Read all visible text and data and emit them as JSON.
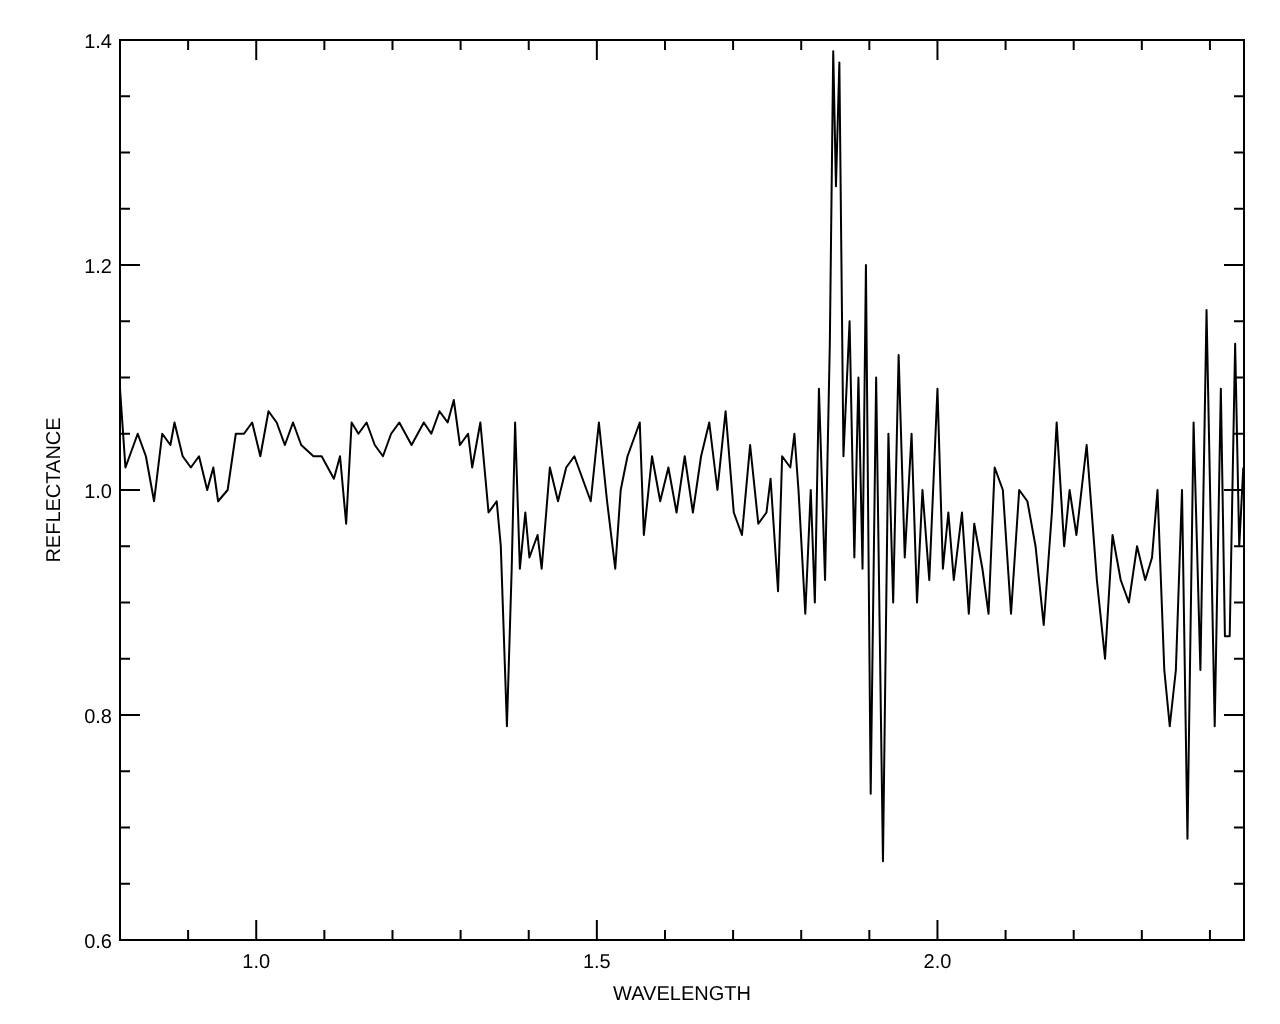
{
  "chart_data": {
    "type": "line",
    "xlabel": "WAVELENGTH",
    "ylabel": "REFLECTANCE",
    "xlim": [
      0.8,
      2.45
    ],
    "ylim": [
      0.6,
      1.4
    ],
    "xticks": [
      {
        "value": 0.9,
        "label": null
      },
      {
        "value": 1.0,
        "label": "1.0"
      },
      {
        "value": 1.1,
        "label": null
      },
      {
        "value": 1.2,
        "label": null
      },
      {
        "value": 1.3,
        "label": null
      },
      {
        "value": 1.4,
        "label": null
      },
      {
        "value": 1.5,
        "label": "1.5"
      },
      {
        "value": 1.6,
        "label": null
      },
      {
        "value": 1.7,
        "label": null
      },
      {
        "value": 1.8,
        "label": null
      },
      {
        "value": 1.9,
        "label": null
      },
      {
        "value": 2.0,
        "label": "2.0"
      },
      {
        "value": 2.1,
        "label": null
      },
      {
        "value": 2.2,
        "label": null
      },
      {
        "value": 2.3,
        "label": null
      },
      {
        "value": 2.4,
        "label": null
      }
    ],
    "yticks": [
      {
        "value": 0.6,
        "label": "0.6"
      },
      {
        "value": 0.65,
        "label": null
      },
      {
        "value": 0.7,
        "label": null
      },
      {
        "value": 0.75,
        "label": null
      },
      {
        "value": 0.8,
        "label": "0.8"
      },
      {
        "value": 0.85,
        "label": null
      },
      {
        "value": 0.9,
        "label": null
      },
      {
        "value": 0.95,
        "label": null
      },
      {
        "value": 1.0,
        "label": "1.0"
      },
      {
        "value": 1.05,
        "label": null
      },
      {
        "value": 1.1,
        "label": null
      },
      {
        "value": 1.15,
        "label": null
      },
      {
        "value": 1.2,
        "label": "1.2"
      },
      {
        "value": 1.25,
        "label": null
      },
      {
        "value": 1.3,
        "label": null
      },
      {
        "value": 1.35,
        "label": null
      },
      {
        "value": 1.4,
        "label": "1.4"
      }
    ],
    "grid": false,
    "line_style": "solid",
    "series": [
      {
        "color": "#000000",
        "x": [
          0.8,
          0.808,
          0.82,
          0.826,
          0.838,
          0.85,
          0.862,
          0.874,
          0.88,
          0.892,
          0.904,
          0.916,
          0.928,
          0.937,
          0.944,
          0.958,
          0.97,
          0.982,
          0.994,
          1.006,
          1.018,
          1.03,
          1.042,
          1.054,
          1.066,
          1.084,
          1.096,
          1.114,
          1.123,
          1.132,
          1.14,
          1.15,
          1.162,
          1.174,
          1.186,
          1.198,
          1.21,
          1.228,
          1.246,
          1.257,
          1.269,
          1.281,
          1.29,
          1.299,
          1.311,
          1.317,
          1.329,
          1.341,
          1.353,
          1.359,
          1.368,
          1.375,
          1.38,
          1.387,
          1.395,
          1.401,
          1.413,
          1.419,
          1.431,
          1.443,
          1.455,
          1.467,
          1.479,
          1.491,
          1.503,
          1.515,
          1.527,
          1.535,
          1.545,
          1.563,
          1.569,
          1.581,
          1.593,
          1.605,
          1.617,
          1.629,
          1.641,
          1.653,
          1.665,
          1.677,
          1.689,
          1.701,
          1.713,
          1.725,
          1.737,
          1.749,
          1.755,
          1.766,
          1.772,
          1.784,
          1.79,
          1.796,
          1.806,
          1.814,
          1.82,
          1.826,
          1.835,
          1.842,
          1.847,
          1.851,
          1.856,
          1.862,
          1.871,
          1.878,
          1.884,
          1.89,
          1.895,
          1.902,
          1.91,
          1.92,
          1.928,
          1.935,
          1.943,
          1.952,
          1.962,
          1.97,
          1.978,
          1.988,
          2.0,
          2.008,
          2.016,
          2.024,
          2.036,
          2.046,
          2.054,
          2.066,
          2.075,
          2.084,
          2.096,
          2.108,
          2.12,
          2.132,
          2.144,
          2.156,
          2.168,
          2.175,
          2.186,
          2.194,
          2.204,
          2.219,
          2.234,
          2.246,
          2.257,
          2.269,
          2.281,
          2.293,
          2.305,
          2.315,
          2.323,
          2.333,
          2.341,
          2.35,
          2.359,
          2.367,
          2.376,
          2.386,
          2.395,
          2.407,
          2.416,
          2.422,
          2.429,
          2.437,
          2.443,
          2.449
        ],
        "values": [
          1.09,
          1.02,
          1.04,
          1.05,
          1.03,
          0.99,
          1.05,
          1.04,
          1.06,
          1.03,
          1.02,
          1.03,
          1.0,
          1.02,
          0.99,
          1.0,
          1.05,
          1.05,
          1.06,
          1.03,
          1.07,
          1.06,
          1.04,
          1.06,
          1.04,
          1.03,
          1.03,
          1.01,
          1.03,
          0.97,
          1.06,
          1.05,
          1.06,
          1.04,
          1.03,
          1.05,
          1.06,
          1.04,
          1.06,
          1.05,
          1.07,
          1.06,
          1.08,
          1.04,
          1.05,
          1.02,
          1.06,
          0.98,
          0.99,
          0.95,
          0.79,
          0.93,
          1.06,
          0.93,
          0.98,
          0.94,
          0.96,
          0.93,
          1.02,
          0.99,
          1.02,
          1.03,
          1.01,
          0.99,
          1.06,
          0.99,
          0.93,
          1.0,
          1.03,
          1.06,
          0.96,
          1.03,
          0.99,
          1.02,
          0.98,
          1.03,
          0.98,
          1.03,
          1.06,
          1.0,
          1.07,
          0.98,
          0.96,
          1.04,
          0.97,
          0.98,
          1.01,
          0.91,
          1.03,
          1.02,
          1.05,
          1.0,
          0.89,
          1.0,
          0.9,
          1.09,
          0.92,
          1.13,
          1.39,
          1.27,
          1.38,
          1.03,
          1.15,
          0.94,
          1.1,
          0.93,
          1.2,
          0.73,
          1.1,
          0.67,
          1.05,
          0.9,
          1.12,
          0.94,
          1.05,
          0.9,
          1.0,
          0.92,
          1.09,
          0.93,
          0.98,
          0.92,
          0.98,
          0.89,
          0.97,
          0.93,
          0.89,
          1.02,
          1.0,
          0.89,
          1.0,
          0.99,
          0.95,
          0.88,
          0.98,
          1.06,
          0.95,
          1.0,
          0.96,
          1.04,
          0.92,
          0.85,
          0.96,
          0.92,
          0.9,
          0.95,
          0.92,
          0.94,
          1.0,
          0.84,
          0.79,
          0.84,
          1.0,
          0.69,
          1.06,
          0.84,
          1.16,
          0.79,
          1.09,
          0.87,
          0.87,
          1.13,
          0.95,
          1.02
        ]
      }
    ]
  }
}
